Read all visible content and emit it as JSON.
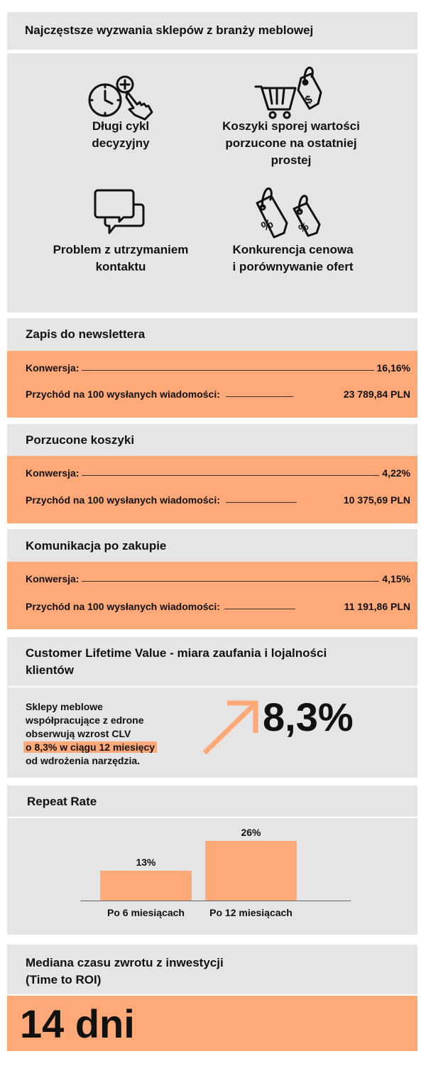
{
  "title": "Najczęstsze wyzwania sklepów z branży meblowej",
  "challenges": [
    {
      "icon": "clock-hand-icon",
      "lines": [
        "Długi cykl",
        "decyzyjny"
      ]
    },
    {
      "icon": "cart-price-tag-icon",
      "lines": [
        "Koszyki sporej wartości",
        "porzucone na ostatniej",
        "prostej"
      ]
    },
    {
      "icon": "chat-bubbles-icon",
      "lines": [
        "Problem z utrzymaniem",
        "kontaktu"
      ]
    },
    {
      "icon": "discount-tags-icon",
      "lines": [
        "Konkurencja cenowa",
        "i porównywanie ofert"
      ]
    }
  ],
  "sections": [
    {
      "title": "Zapis do newslettera",
      "conversion_label": "Konwersja:",
      "conversion": "16,16%",
      "revenue_label": "Przychód na 100 wysłanych wiadomości:",
      "revenue": "23 789,84 PLN"
    },
    {
      "title": "Porzucone koszyki",
      "conversion_label": "Konwersja:",
      "conversion": "4,22%",
      "revenue_label": "Przychód na 100 wysłanych wiadomości:",
      "revenue": "10 375,69 PLN"
    },
    {
      "title": "Komunikacja po zakupie",
      "conversion_label": "Konwersja:",
      "conversion": "4,15%",
      "revenue_label": "Przychód na 100 wysłanych wiadomości:",
      "revenue": "11 191,86 PLN"
    }
  ],
  "clv": {
    "title_lines": [
      "Customer Lifetime Value - miara zaufania i lojalności",
      "klientów"
    ],
    "text_lines": [
      "Sklepy meblowe",
      "współpracujące z edrone",
      "obserwują wzrost CLV"
    ],
    "highlight": "o 8,3% w ciągu 12 miesięcy",
    "text_end": "od wdrożenia narzędzia.",
    "value": "8,3%"
  },
  "repeat_rate": {
    "title": "Repeat Rate"
  },
  "chart_data": {
    "type": "bar",
    "title": "Repeat Rate",
    "categories": [
      "Po 6 miesiącach",
      "Po 12 miesiącach"
    ],
    "values": [
      13,
      26
    ],
    "labels": [
      "13%",
      "26%"
    ],
    "ylim": [
      0,
      26
    ],
    "xlabel": "",
    "ylabel": ""
  },
  "roi": {
    "title_lines": [
      "Mediana czasu zwrotu z inwestycji",
      "(Time to ROI)"
    ],
    "value": "14 dni"
  },
  "colors": {
    "accent": "#ffa878",
    "panel": "#e5e5e5"
  }
}
